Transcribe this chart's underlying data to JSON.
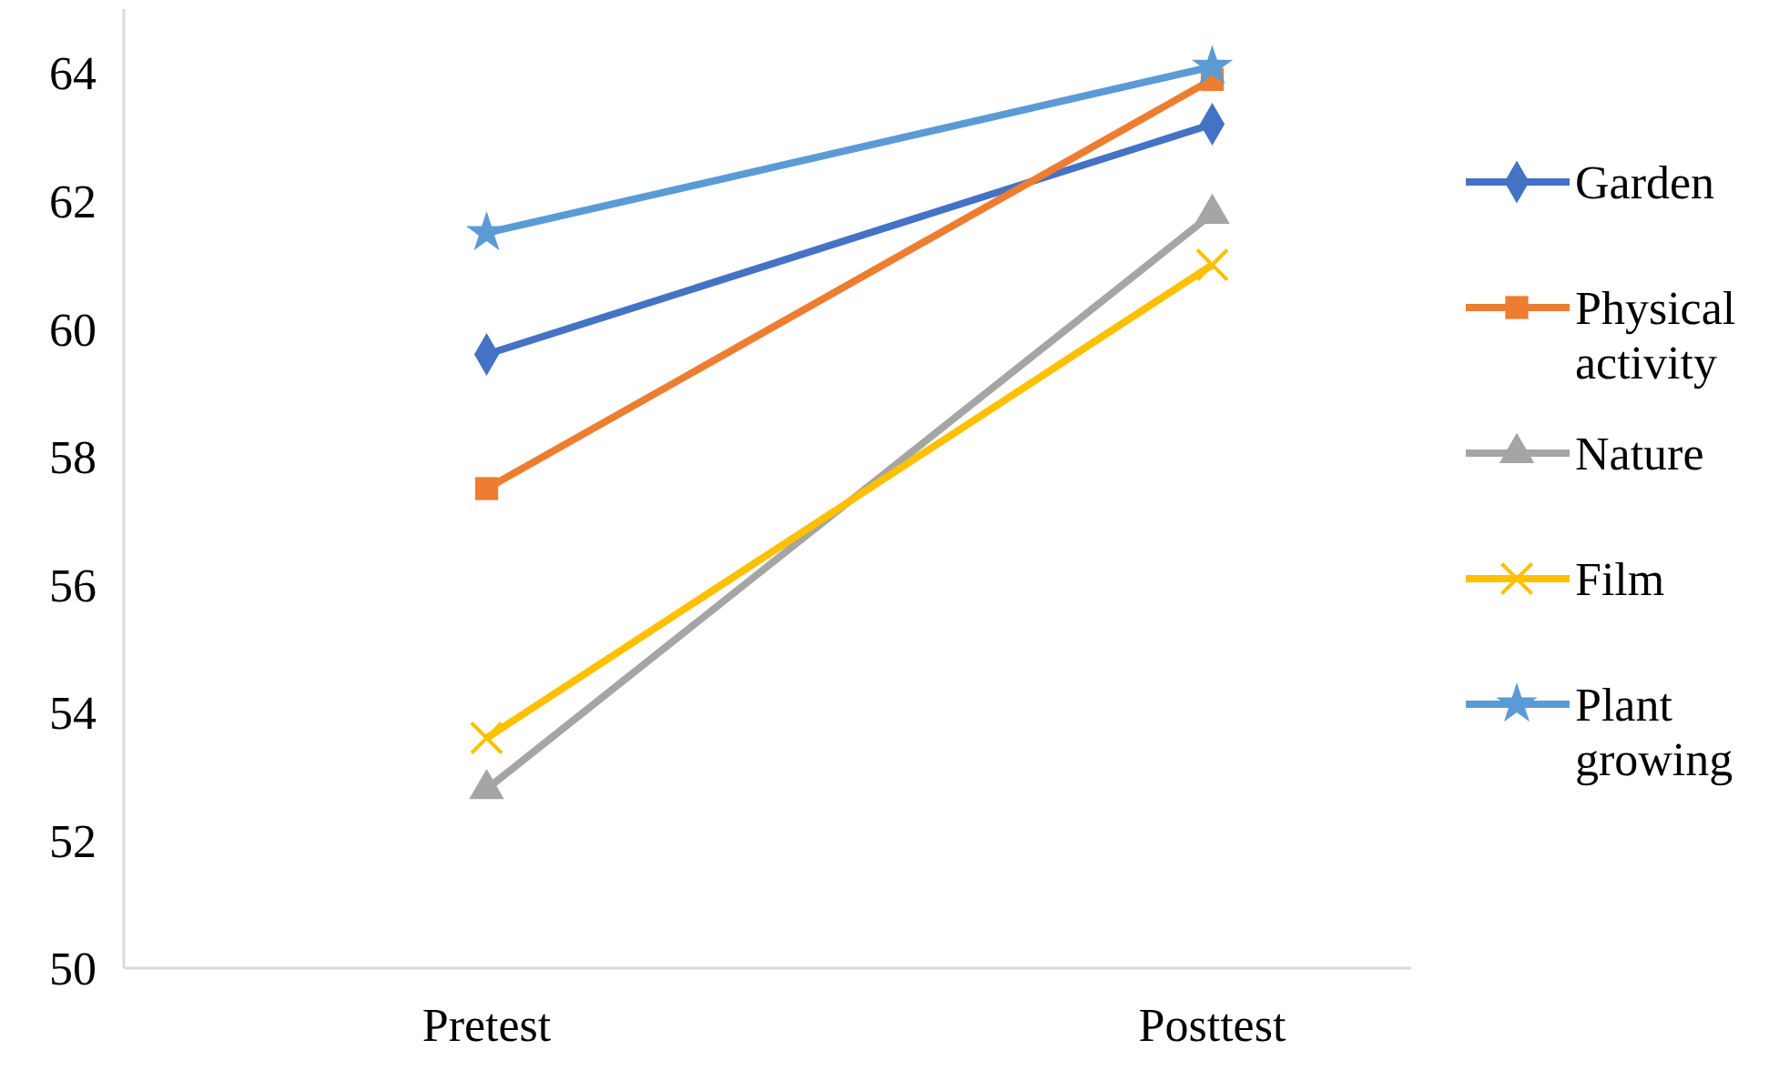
{
  "chart_data": {
    "type": "line",
    "categories": [
      "Pretest",
      "Posttest"
    ],
    "series": [
      {
        "name": "Garden",
        "color": "#4472c4",
        "marker": "diamond",
        "values": [
          59.6,
          63.2
        ]
      },
      {
        "name": "Physical activity",
        "color": "#ed7d31",
        "marker": "square",
        "values": [
          57.5,
          63.9
        ]
      },
      {
        "name": "Nature",
        "color": "#a5a5a5",
        "marker": "triangle",
        "values": [
          52.8,
          61.8
        ]
      },
      {
        "name": "Film",
        "color": "#ffc000",
        "marker": "cross",
        "values": [
          53.6,
          61.0
        ]
      },
      {
        "name": "Plant growing",
        "color": "#5b9bd5",
        "marker": "star",
        "values": [
          61.5,
          64.1
        ]
      }
    ],
    "ylim": [
      50,
      65
    ],
    "yticks": [
      50,
      52,
      54,
      56,
      58,
      60,
      62,
      64
    ],
    "grid": false,
    "legend": "right"
  }
}
